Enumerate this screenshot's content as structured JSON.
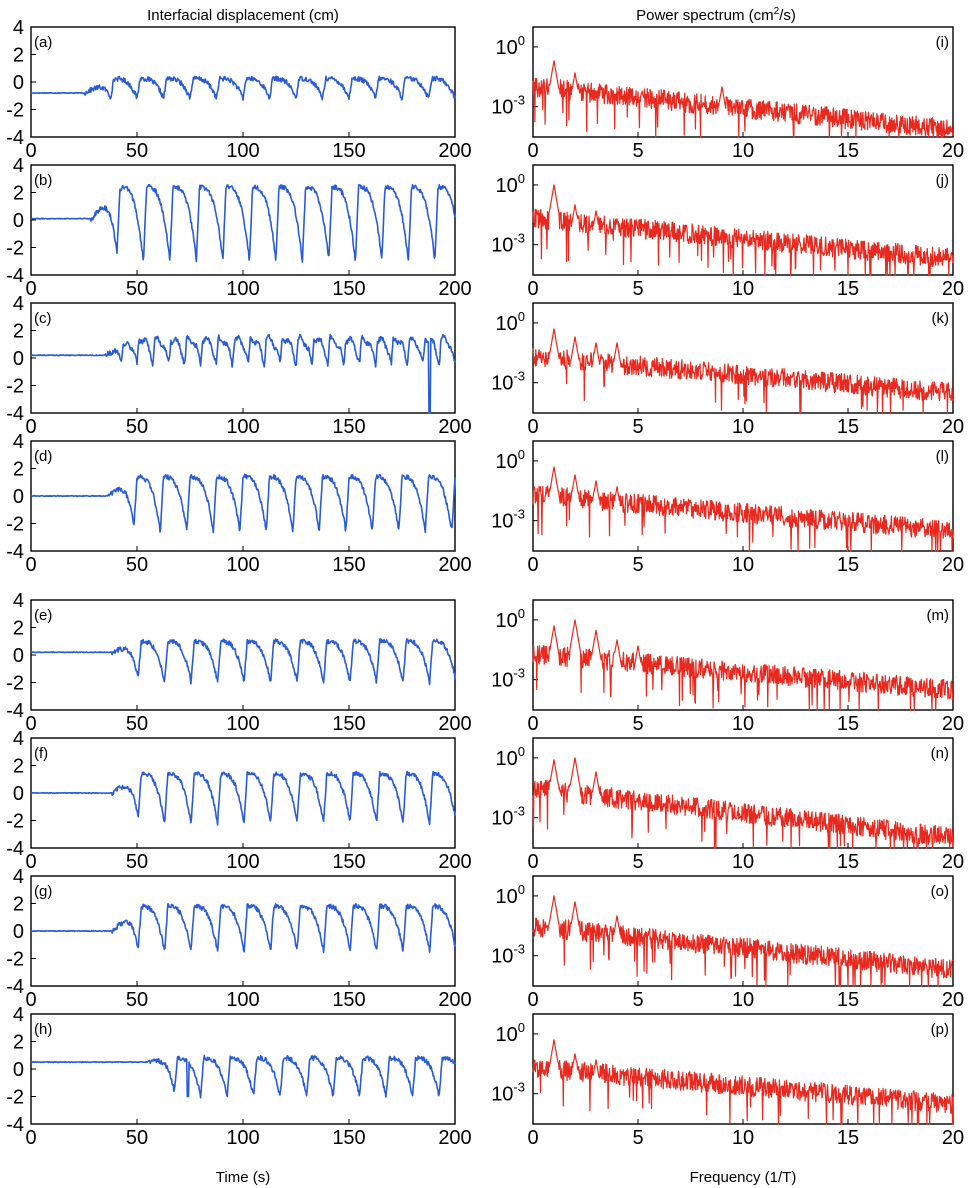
{
  "titles": {
    "left": "Interfacial displacement (cm)",
    "right": "Power spectrum (cm",
    "right_sup": "2",
    "right_end": "/s)",
    "left_xlabel": "Time (s)",
    "right_xlabel": "Frequency (1/T)"
  },
  "colors": {
    "time_series": "#2a5bd6",
    "spectrum": "#e8291f"
  },
  "chart_data": [
    {
      "type": "line",
      "panel": "(a)",
      "column": "time",
      "xlim": [
        0,
        200
      ],
      "ylim": [
        -4,
        4
      ],
      "xticks": [
        0,
        50,
        100,
        150,
        200
      ],
      "yticks": [
        4,
        2,
        0,
        -2,
        -4
      ],
      "onset": 25,
      "baseline": -0.8,
      "amplitude": 0.25,
      "period": 12.5,
      "spike_depth": 0.4
    },
    {
      "type": "line",
      "panel": "(b)",
      "column": "time",
      "xlim": [
        0,
        200
      ],
      "ylim": [
        -4,
        4
      ],
      "xticks": [
        0,
        50,
        100,
        150,
        200
      ],
      "yticks": [
        4,
        2,
        0,
        -2,
        -4
      ],
      "onset": 28,
      "baseline": 0.1,
      "amplitude": 2.4,
      "trough": -3.0,
      "period": 12.5,
      "spike_depth": 3.2
    },
    {
      "type": "line",
      "panel": "(c)",
      "column": "time",
      "xlim": [
        0,
        200
      ],
      "ylim": [
        -4,
        4
      ],
      "xticks": [
        0,
        50,
        100,
        150,
        200
      ],
      "yticks": [
        4,
        2,
        0,
        -2,
        -4
      ],
      "onset": 35,
      "baseline": 0.2,
      "amplitude": 1.6,
      "trough": -2.2,
      "period": 7.5,
      "spike_depth": 2.6,
      "outlier": {
        "x": 188,
        "y": -4.0
      }
    },
    {
      "type": "line",
      "panel": "(d)",
      "column": "time",
      "xlim": [
        0,
        200
      ],
      "ylim": [
        -4,
        4
      ],
      "xticks": [
        0,
        50,
        100,
        150,
        200
      ],
      "yticks": [
        4,
        2,
        0,
        -2,
        -4
      ],
      "onset": 36,
      "baseline": 0.0,
      "amplitude": 1.4,
      "trough": -2.6,
      "period": 12.5,
      "spike_depth": 3.0
    },
    {
      "type": "line",
      "panel": "(e)",
      "column": "time",
      "xlim": [
        0,
        200
      ],
      "ylim": [
        -4,
        4
      ],
      "xticks": [
        0,
        50,
        100,
        150,
        200
      ],
      "yticks": [
        4,
        2,
        0,
        -2,
        -4
      ],
      "onset": 38,
      "baseline": 0.2,
      "amplitude": 1.0,
      "trough": -2.0,
      "period": 12.5,
      "spike_depth": 2.6
    },
    {
      "type": "line",
      "panel": "(f)",
      "column": "time",
      "xlim": [
        0,
        200
      ],
      "ylim": [
        -4,
        4
      ],
      "xticks": [
        0,
        50,
        100,
        150,
        200
      ],
      "yticks": [
        4,
        2,
        0,
        -2,
        -4
      ],
      "onset": 38,
      "baseline": 0.0,
      "amplitude": 1.4,
      "trough": -2.2,
      "period": 12.5,
      "spike_depth": 2.4
    },
    {
      "type": "line",
      "panel": "(g)",
      "column": "time",
      "xlim": [
        0,
        200
      ],
      "ylim": [
        -4,
        4
      ],
      "xticks": [
        0,
        50,
        100,
        150,
        200
      ],
      "yticks": [
        4,
        2,
        0,
        -2,
        -4
      ],
      "onset": 38,
      "baseline": 0.0,
      "amplitude": 1.8,
      "trough": -1.5,
      "period": 12.5,
      "spike_depth": 1.8
    },
    {
      "type": "line",
      "panel": "(h)",
      "column": "time",
      "xlim": [
        0,
        200
      ],
      "ylim": [
        -4,
        4
      ],
      "xticks": [
        0,
        50,
        100,
        150,
        200
      ],
      "yticks": [
        4,
        2,
        0,
        -2,
        -4
      ],
      "onset": 55,
      "baseline": 0.5,
      "amplitude": 0.8,
      "trough": -2.0,
      "period": 12.5,
      "spike_depth": 1.5,
      "outlier": {
        "x": 74,
        "y": -2.0
      }
    },
    {
      "type": "line",
      "panel": "(i)",
      "column": "spectrum",
      "yscale": "log",
      "xlim": [
        0,
        20
      ],
      "ylim": [
        3e-05,
        10
      ],
      "xticks": [
        0,
        5,
        10,
        15,
        20
      ],
      "yticks": [
        1,
        0.001
      ],
      "peaks": [
        1,
        2,
        9
      ],
      "peak_values": [
        0.2,
        0.05,
        0.01
      ],
      "base_start": 0.01,
      "base_end": 7e-05
    },
    {
      "type": "line",
      "panel": "(j)",
      "column": "spectrum",
      "yscale": "log",
      "xlim": [
        0,
        20
      ],
      "ylim": [
        3e-05,
        10
      ],
      "xticks": [
        0,
        5,
        10,
        15,
        20
      ],
      "yticks": [
        1,
        0.001
      ],
      "peaks": [
        1,
        2,
        3,
        4
      ],
      "peak_values": [
        1.0,
        0.1,
        0.05,
        0.02
      ],
      "base_start": 0.02,
      "base_end": 0.0002
    },
    {
      "type": "line",
      "panel": "(k)",
      "column": "spectrum",
      "yscale": "log",
      "xlim": [
        0,
        20
      ],
      "ylim": [
        3e-05,
        10
      ],
      "xticks": [
        0,
        5,
        10,
        15,
        20
      ],
      "yticks": [
        1,
        0.001
      ],
      "peaks": [
        1,
        2,
        3,
        4
      ],
      "peak_values": [
        0.5,
        0.2,
        0.1,
        0.1
      ],
      "base_start": 0.02,
      "base_end": 0.0003
    },
    {
      "type": "line",
      "panel": "(l)",
      "column": "spectrum",
      "yscale": "log",
      "xlim": [
        0,
        20
      ],
      "ylim": [
        3e-05,
        10
      ],
      "xticks": [
        0,
        5,
        10,
        15,
        20
      ],
      "yticks": [
        1,
        0.001
      ],
      "peaks": [
        1,
        2,
        3,
        4
      ],
      "peak_values": [
        0.5,
        0.2,
        0.1,
        0.05
      ],
      "base_start": 0.02,
      "base_end": 0.0003
    },
    {
      "type": "line",
      "panel": "(m)",
      "column": "spectrum",
      "yscale": "log",
      "xlim": [
        0,
        20
      ],
      "ylim": [
        3e-05,
        10
      ],
      "xticks": [
        0,
        5,
        10,
        15,
        20
      ],
      "yticks": [
        1,
        0.001
      ],
      "peaks": [
        1,
        2,
        3,
        4,
        5
      ],
      "peak_values": [
        0.5,
        1.0,
        0.3,
        0.1,
        0.05
      ],
      "base_start": 0.02,
      "base_end": 0.0003
    },
    {
      "type": "line",
      "panel": "(n)",
      "column": "spectrum",
      "yscale": "log",
      "xlim": [
        0,
        20
      ],
      "ylim": [
        3e-05,
        10
      ],
      "xticks": [
        0,
        5,
        10,
        15,
        20
      ],
      "yticks": [
        1,
        0.001
      ],
      "peaks": [
        1,
        2,
        3
      ],
      "peak_values": [
        0.8,
        1.0,
        0.2
      ],
      "base_start": 0.03,
      "base_end": 0.0001
    },
    {
      "type": "line",
      "panel": "(o)",
      "column": "spectrum",
      "yscale": "log",
      "xlim": [
        0,
        20
      ],
      "ylim": [
        3e-05,
        10
      ],
      "xticks": [
        0,
        5,
        10,
        15,
        20
      ],
      "yticks": [
        1,
        0.001
      ],
      "peaks": [
        1,
        2,
        4
      ],
      "peak_values": [
        1.0,
        0.5,
        0.1
      ],
      "base_start": 0.03,
      "base_end": 0.0002
    },
    {
      "type": "line",
      "panel": "(p)",
      "column": "spectrum",
      "yscale": "log",
      "xlim": [
        0,
        20
      ],
      "ylim": [
        3e-05,
        10
      ],
      "xticks": [
        0,
        5,
        10,
        15,
        20
      ],
      "yticks": [
        1,
        0.001
      ],
      "peaks": [
        1,
        2,
        3
      ],
      "peak_values": [
        0.5,
        0.1,
        0.05
      ],
      "base_start": 0.02,
      "base_end": 0.0003
    }
  ]
}
